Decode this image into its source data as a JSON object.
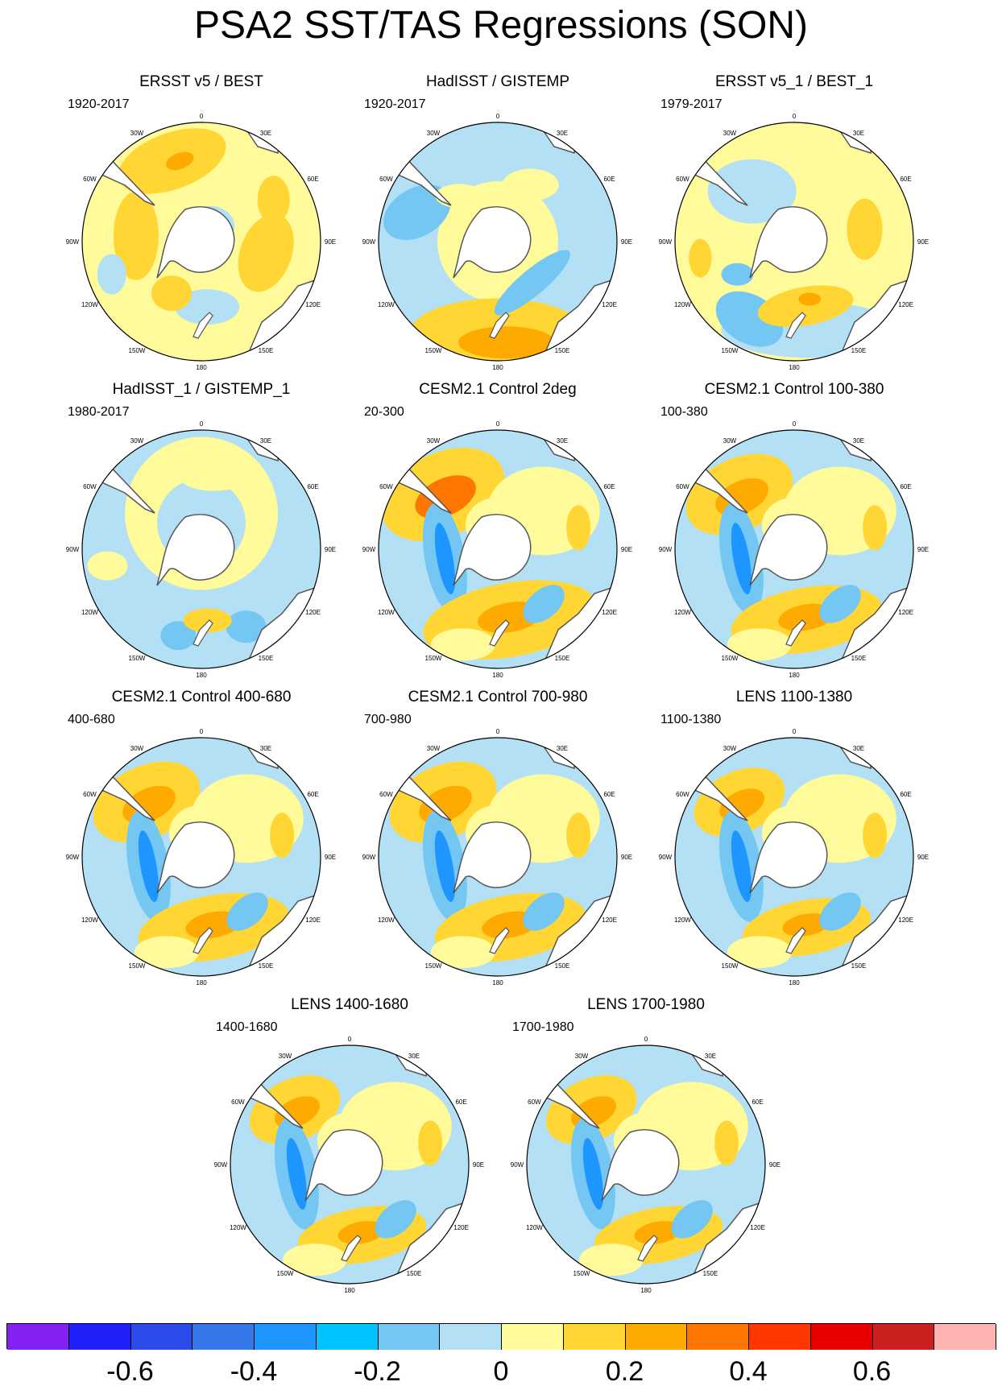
{
  "title": "PSA2 SST/TAS Regressions (SON)",
  "panels": [
    {
      "title": "ERSST v5 / BEST",
      "period": "1920-2017",
      "pattern": "obs_warm"
    },
    {
      "title": "HadISST / GISTEMP",
      "period": "1920-2017",
      "pattern": "obs_cool"
    },
    {
      "title": "ERSST v5_1 / BEST_1",
      "period": "1979-2017",
      "pattern": "obs_mixed"
    },
    {
      "title": "HadISST_1 / GISTEMP_1",
      "period": "1980-2017",
      "pattern": "obs_noisy"
    },
    {
      "title": "CESM2.1 Control 2deg",
      "period": "20-300",
      "pattern": "model_strong"
    },
    {
      "title": "CESM2.1 Control 100-380",
      "period": "100-380",
      "pattern": "model"
    },
    {
      "title": "CESM2.1 Control 400-680",
      "period": "400-680",
      "pattern": "model"
    },
    {
      "title": "CESM2.1 Control 700-980",
      "period": "700-980",
      "pattern": "model"
    },
    {
      "title": "LENS 1100-1380",
      "period": "1100-1380",
      "pattern": "model_weak"
    },
    {
      "title": "LENS 1400-1680",
      "period": "1400-1680",
      "pattern": "model_weak"
    },
    {
      "title": "LENS 1700-1980",
      "period": "1700-1980",
      "pattern": "model_weak"
    }
  ],
  "longitude_labels": [
    "0",
    "30E",
    "60E",
    "90E",
    "120E",
    "150E",
    "180",
    "150W",
    "120W",
    "90W",
    "60W",
    "30W"
  ],
  "colorbar": {
    "colors": [
      "#8221f2",
      "#1f1ffa",
      "#2c4be8",
      "#3478e8",
      "#1e96ff",
      "#00c3ff",
      "#73c7f2",
      "#b3e0f5",
      "#fffb9a",
      "#ffd633",
      "#ffaa00",
      "#ff7700",
      "#ff3700",
      "#e80000",
      "#cc1f1f",
      "#ffb3b3"
    ],
    "tick_labels": [
      "-0.6",
      "-0.4",
      "-0.2",
      "0",
      "0.2",
      "0.4",
      "0.6"
    ]
  }
}
